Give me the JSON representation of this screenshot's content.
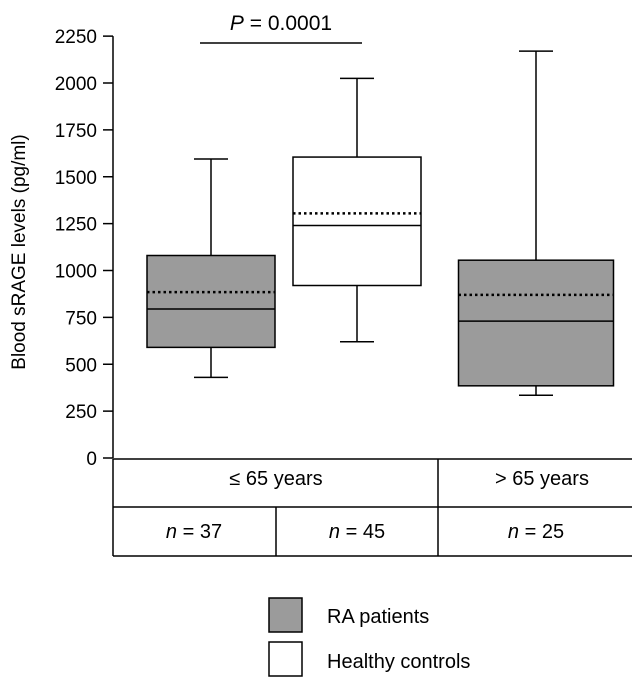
{
  "chart_data": {
    "type": "box",
    "ylabel": "Blood sRAGE levels (pg/ml)",
    "ylim": [
      0,
      2250
    ],
    "yticks": [
      "0",
      "250",
      "500",
      "750",
      "1000",
      "1250",
      "1500",
      "1750",
      "2000",
      "2250"
    ],
    "boxes": [
      {
        "group": "RA patients",
        "age": "≤ 65 years",
        "min": 430,
        "q1": 590,
        "median": 795,
        "mean": 885,
        "q3": 1080,
        "max": 1595,
        "n_label": "n = 37"
      },
      {
        "group": "Healthy controls",
        "age": "≤ 65 years",
        "min": 620,
        "q1": 920,
        "median": 1240,
        "mean": 1305,
        "q3": 1605,
        "max": 2025,
        "n_label": "n = 45"
      },
      {
        "group": "RA patients",
        "age": "> 65 years",
        "min": 335,
        "q1": 385,
        "median": 730,
        "mean": 870,
        "q3": 1055,
        "max": 2170,
        "n_label": "n = 25"
      }
    ],
    "age_groups": [
      "≤ 65 years",
      "> 65 years"
    ],
    "annotation": {
      "p_italic": "P",
      "p_rest": " = 0.0001"
    },
    "legend": [
      {
        "label": "RA patients",
        "color": "#9b9b9b"
      },
      {
        "label": "Healthy controls",
        "color": "#ffffff"
      }
    ]
  }
}
